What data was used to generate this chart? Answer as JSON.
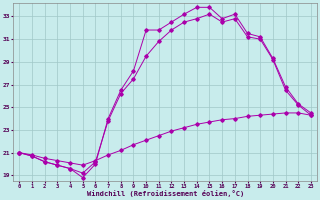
{
  "xlabel": "Windchill (Refroidissement éolien,°C)",
  "bg_color": "#c8ecec",
  "grid_color": "#a0c8c8",
  "line_color": "#aa00aa",
  "xlim": [
    -0.5,
    23.5
  ],
  "ylim": [
    18.5,
    34.2
  ],
  "xticks": [
    0,
    1,
    2,
    3,
    4,
    5,
    6,
    7,
    8,
    9,
    10,
    11,
    12,
    13,
    14,
    15,
    16,
    17,
    18,
    19,
    20,
    21,
    22,
    23
  ],
  "yticks": [
    19,
    21,
    23,
    25,
    27,
    29,
    31,
    33
  ],
  "line1_x": [
    0,
    1,
    2,
    3,
    4,
    5,
    6,
    7,
    8,
    9,
    10,
    11,
    12,
    13,
    14,
    15,
    16,
    17,
    18,
    19,
    20,
    21,
    22,
    23
  ],
  "line1_y": [
    21.0,
    20.8,
    20.5,
    20.3,
    20.1,
    19.9,
    20.3,
    20.8,
    21.2,
    21.7,
    22.1,
    22.5,
    22.9,
    23.2,
    23.5,
    23.7,
    23.9,
    24.0,
    24.2,
    24.3,
    24.4,
    24.5,
    24.5,
    24.3
  ],
  "line2_x": [
    0,
    1,
    2,
    3,
    4,
    5,
    6,
    7,
    8,
    9,
    10,
    11,
    12,
    13,
    14,
    15,
    16,
    17,
    18,
    19,
    20,
    21,
    22,
    23
  ],
  "line2_y": [
    21.0,
    20.7,
    20.2,
    19.9,
    19.6,
    19.2,
    20.2,
    23.8,
    26.2,
    27.5,
    29.5,
    30.8,
    31.8,
    32.5,
    32.8,
    33.2,
    32.5,
    32.8,
    31.2,
    31.0,
    29.2,
    26.5,
    25.2,
    24.3
  ],
  "line3_x": [
    0,
    1,
    2,
    3,
    4,
    5,
    6,
    7,
    8,
    9,
    10,
    11,
    12,
    13,
    14,
    15,
    16,
    17,
    18,
    19,
    20,
    21,
    22,
    23
  ],
  "line3_y": [
    21.0,
    20.7,
    20.2,
    19.9,
    19.6,
    18.8,
    20.0,
    24.0,
    26.5,
    28.2,
    31.8,
    31.8,
    32.5,
    33.2,
    33.8,
    33.8,
    32.8,
    33.2,
    31.5,
    31.2,
    29.3,
    26.8,
    25.3,
    24.5
  ]
}
